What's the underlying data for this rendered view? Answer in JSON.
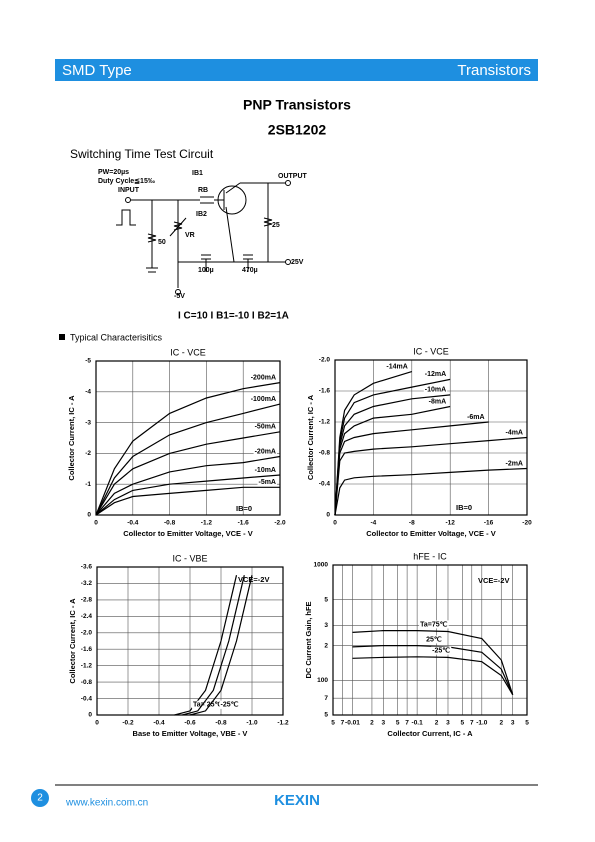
{
  "header": {
    "left": "SMD Type",
    "right": "Transistors"
  },
  "title": "PNP  Transistors",
  "part": "2SB1202",
  "circuit": {
    "caption": "Switching Time Test Circuit",
    "labels": [
      "PW=20µs",
      "Duty Cycle≦15‰",
      "INPUT",
      "IB1",
      "RB",
      "IB2",
      "VR",
      "50",
      "OUTPUT",
      "25",
      "100µ",
      "470µ",
      "25V",
      "-5V"
    ],
    "formula": "I C=10 I B1=-10 I B2=1A"
  },
  "section": "Typical  Characterisitics",
  "charts": [
    {
      "type": "line",
      "title": "IC - VCE",
      "x_label": "Collector to Emitter Voltage, VCE - V",
      "y_label": "Collector Current, IC - A",
      "color": "#000000",
      "grid": true,
      "xlim": [
        0,
        -2
      ],
      "ylim": [
        0,
        -5
      ],
      "xticks": [
        0,
        -0.4,
        -0.8,
        -1.2,
        -1.6,
        {
          "value": -2,
          "label": "-2.0"
        }
      ],
      "yticks": [
        0,
        -1,
        -2,
        -3,
        -4,
        -5
      ],
      "x": [
        0,
        -0.2,
        -0.4,
        -0.8,
        -1.2,
        -1.6,
        -2
      ],
      "series": [
        {
          "name": "-200mA",
          "values": [
            0,
            -1.5,
            -2.4,
            -3.3,
            -3.8,
            -4.1,
            -4.3
          ]
        },
        {
          "name": "-100mA",
          "values": [
            0,
            -1.2,
            -1.9,
            -2.6,
            -3,
            -3.3,
            -3.6
          ]
        },
        {
          "name": "-50mA",
          "values": [
            0,
            -1,
            -1.5,
            -2,
            -2.3,
            -2.5,
            -2.7
          ]
        },
        {
          "name": "-20mA",
          "values": [
            0,
            -0.7,
            -1,
            -1.4,
            -1.6,
            -1.7,
            -1.9
          ]
        },
        {
          "name": "-10mA",
          "values": [
            0,
            -0.5,
            -0.8,
            -1,
            -1.1,
            -1.2,
            -1.3
          ]
        },
        {
          "name": "-5mA",
          "values": [
            0,
            -0.4,
            -0.6,
            -0.7,
            -0.8,
            -0.9,
            -0.9
          ]
        }
      ],
      "annotations": [
        "IB=0"
      ]
    },
    {
      "type": "line",
      "title": "IC - VCE",
      "x_label": "Collector to Emitter Voltage, VCE - V",
      "y_label": "Collector Current, IC - A",
      "color": "#000000",
      "grid": true,
      "xlim": [
        0,
        -20
      ],
      "ylim": [
        0,
        -2
      ],
      "xticks": [
        0,
        -4,
        -8,
        -12,
        -16,
        -20
      ],
      "yticks": [
        0,
        -0.4,
        -0.8,
        -1.2,
        -1.6,
        {
          "value": -2,
          "label": "-2.0"
        }
      ],
      "x": [
        0,
        -0.5,
        -1,
        -2,
        -4,
        -8,
        -12,
        -16,
        -20
      ],
      "series": [
        {
          "name": "-14mA",
          "values": [
            0,
            -1,
            -1.35,
            -1.55,
            -1.7,
            -1.85,
            null,
            null,
            null
          ]
        },
        {
          "name": "-12mA",
          "values": [
            0,
            -0.95,
            -1.25,
            -1.45,
            -1.55,
            -1.65,
            -1.75,
            null,
            null
          ]
        },
        {
          "name": "-10mA",
          "values": [
            0,
            -0.9,
            -1.15,
            -1.3,
            -1.4,
            -1.5,
            -1.55,
            null,
            null
          ]
        },
        {
          "name": "-8mA",
          "values": [
            0,
            -0.85,
            -1.05,
            -1.15,
            -1.25,
            -1.3,
            -1.4,
            null,
            null
          ]
        },
        {
          "name": "-6mA",
          "values": [
            0,
            -0.8,
            -0.95,
            -1,
            -1.05,
            -1.1,
            -1.15,
            -1.2,
            null
          ]
        },
        {
          "name": "-4mA",
          "values": [
            0,
            -0.7,
            -0.8,
            -0.82,
            -0.85,
            -0.88,
            -0.92,
            -0.96,
            -1
          ]
        },
        {
          "name": "-2mA",
          "values": [
            0,
            -0.35,
            -0.45,
            -0.48,
            -0.5,
            -0.52,
            -0.55,
            -0.58,
            -0.6
          ]
        }
      ],
      "annotations": [
        "IB=0"
      ]
    },
    {
      "type": "line",
      "title": "IC - VBE",
      "x_label": "Base to Emitter Voltage, VBE - V",
      "y_label": "Collector Current, IC - A",
      "color": "#000000",
      "grid": true,
      "xlim": [
        0,
        -1.2
      ],
      "ylim": [
        0,
        -3.6
      ],
      "xticks": [
        0,
        -0.2,
        -0.4,
        -0.6,
        -0.8,
        {
          "value": -1,
          "label": "-1.0"
        },
        -1.2
      ],
      "yticks": [
        0,
        -0.4,
        -0.8,
        -1.2,
        -1.6,
        {
          "value": -2,
          "label": "-2.0"
        },
        -2.4,
        -2.8,
        -3.2,
        -3.6
      ],
      "series": [
        {
          "name": "Ta=75℃",
          "x": [
            -0.5,
            -0.6,
            -0.7,
            -0.8,
            -0.9
          ],
          "values": [
            0,
            -0.1,
            -0.6,
            -1.8,
            -3.4
          ]
        },
        {
          "name": "25℃",
          "x": [
            -0.55,
            -0.65,
            -0.75,
            -0.85,
            -0.95
          ],
          "values": [
            0,
            -0.1,
            -0.6,
            -1.8,
            -3.4
          ]
        },
        {
          "name": "-25℃",
          "x": [
            -0.6,
            -0.7,
            -0.8,
            -0.9,
            -1
          ],
          "values": [
            0,
            -0.1,
            -0.6,
            -1.8,
            -3.4
          ]
        }
      ],
      "annotations": [
        "VCE=-2V"
      ]
    },
    {
      "type": "line",
      "title": "hFE - IC",
      "x_label": "Collector Current, IC - A",
      "y_label": "DC Current Gain, hFE",
      "color": "#000000",
      "grid": true,
      "xscale": "log",
      "yscale": "log",
      "xlim": [
        -0.005,
        -5
      ],
      "ylim": [
        50,
        1000
      ],
      "xticks": [
        {
          "value": -0.005,
          "label": "5"
        },
        {
          "value": -0.007,
          "label": "7"
        },
        -0.01,
        {
          "value": -0.02,
          "label": "2"
        },
        {
          "value": -0.03,
          "label": "3"
        },
        {
          "value": -0.05,
          "label": "5"
        },
        {
          "value": -0.07,
          "label": "7"
        },
        -0.1,
        {
          "value": -0.2,
          "label": "2"
        },
        {
          "value": -0.3,
          "label": "3"
        },
        {
          "value": -0.5,
          "label": "5"
        },
        {
          "value": -0.7,
          "label": "7"
        },
        {
          "value": -1,
          "label": "-1.0"
        },
        {
          "value": -2,
          "label": "2"
        },
        {
          "value": -3,
          "label": "3"
        },
        {
          "value": -5,
          "label": "5"
        }
      ],
      "yticks": [
        1000,
        {
          "value": 500,
          "label": "5"
        },
        {
          "value": 300,
          "label": "3"
        },
        {
          "value": 200,
          "label": "2"
        },
        100,
        {
          "value": 70,
          "label": "7"
        },
        {
          "value": 50,
          "label": "5"
        }
      ],
      "x": [
        -0.01,
        -0.03,
        -0.1,
        -0.3,
        -1,
        -2,
        -3
      ],
      "series": [
        {
          "name": "Ta=75℃",
          "values": [
            260,
            270,
            270,
            265,
            230,
            150,
            75
          ]
        },
        {
          "name": "25℃",
          "values": [
            195,
            200,
            200,
            195,
            175,
            125,
            75
          ]
        },
        {
          "name": "-25℃",
          "values": [
            155,
            158,
            160,
            158,
            145,
            110,
            75
          ]
        }
      ],
      "annotations": [
        "VCE=-2V"
      ]
    }
  ],
  "footer": {
    "page": "2",
    "url": "www.kexin.com.cn",
    "logo": "KEXIN"
  }
}
